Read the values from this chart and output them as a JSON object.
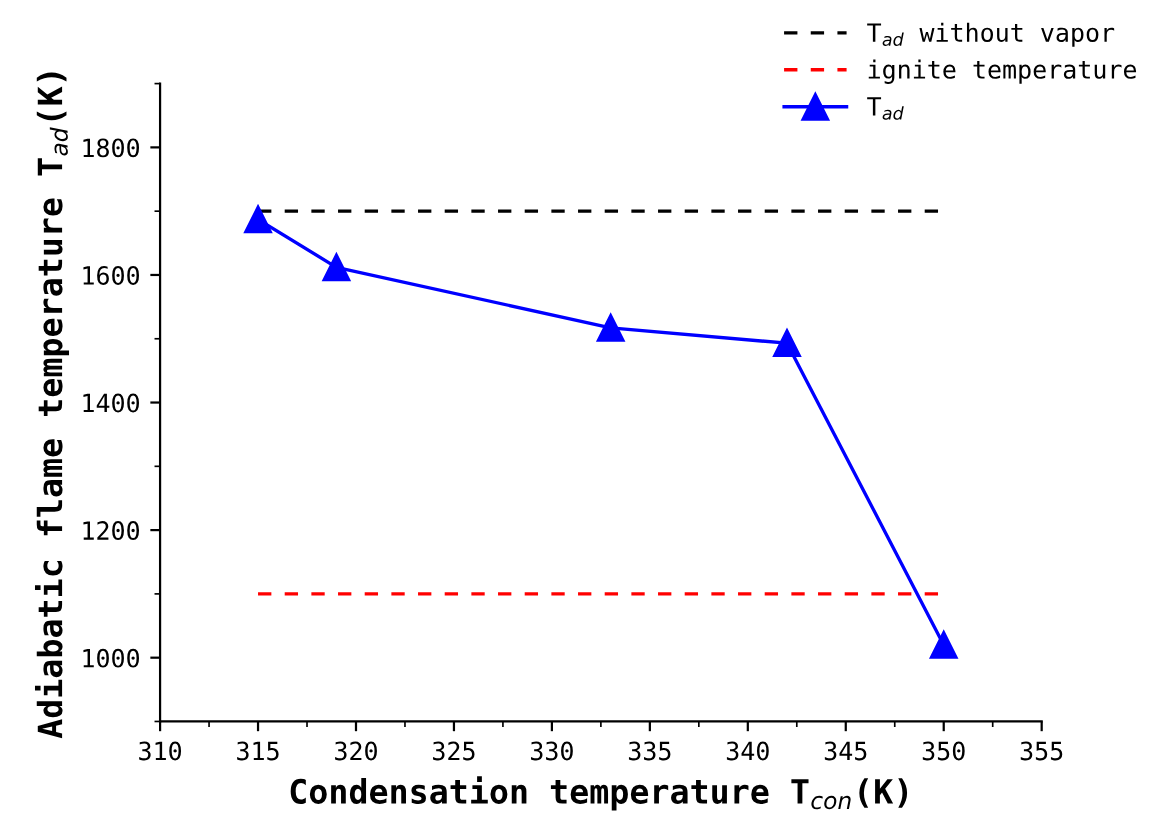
{
  "chart_data": {
    "type": "line",
    "xlabel": "Condensation temperature T$_{con}$(K)",
    "ylabel": "Adiabatic flame temperature T$_{ad}$(K)",
    "xlim": [
      310,
      355
    ],
    "xticks": [
      310,
      315,
      320,
      325,
      330,
      335,
      340,
      345,
      350,
      355
    ],
    "ylim": [
      900,
      1900
    ],
    "yticks": [
      1000,
      1200,
      1400,
      1600,
      1800
    ],
    "grid": false,
    "legend": "top right",
    "series": [
      {
        "name": "T$_{ad}$ without vapor",
        "color": "#000000",
        "line_style": "dashed",
        "marker": "none",
        "x": [
          315,
          350
        ],
        "values": [
          1700,
          1700
        ]
      },
      {
        "name": "ignite temperature",
        "color": "#ff0000",
        "line_style": "dashed",
        "marker": "none",
        "x": [
          315,
          350
        ],
        "values": [
          1100,
          1100
        ]
      },
      {
        "name": "T$_{ad}$",
        "color": "#0000ff",
        "line_style": "solid",
        "marker": "triangle",
        "x": [
          315,
          319,
          333,
          342,
          350
        ],
        "values": [
          1687,
          1612,
          1517,
          1493,
          1020
        ]
      }
    ]
  }
}
